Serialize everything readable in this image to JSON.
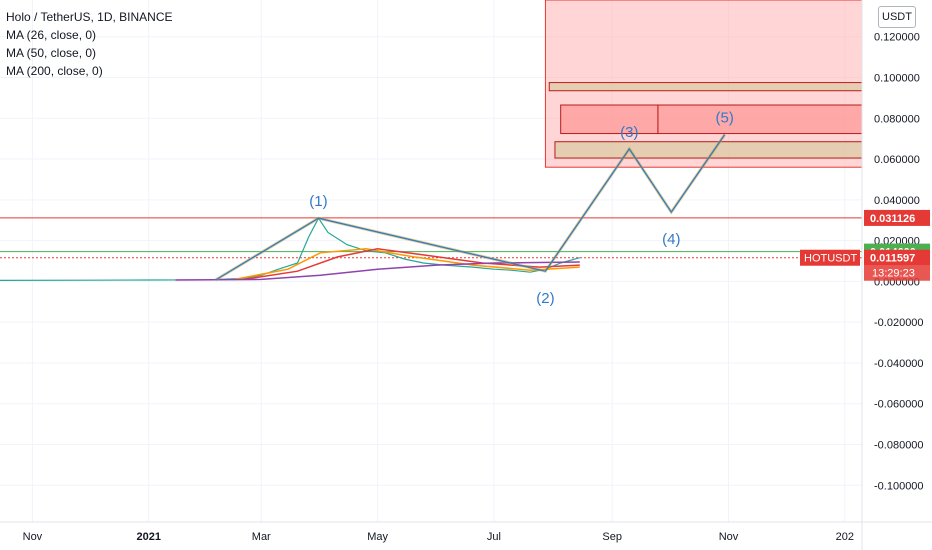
{
  "legend": {
    "symbol": "Holo / TetherUS, 1D, BINANCE",
    "ma1": "MA (26, close, 0)",
    "ma2": "MA (50, close, 0)",
    "ma3": "MA (200, close, 0)"
  },
  "currency_button": "USDT",
  "colors": {
    "wave": "#3179c9",
    "resistance": "#e53935",
    "support": "#4caf50",
    "ma26": "#ff9800",
    "ma50": "#e53935",
    "ma200": "#8e44ad",
    "last_price": "#e53935",
    "target_zone": "#ffb3b3",
    "olive_box": "#d4c89a"
  },
  "chart_data": {
    "type": "line",
    "title": "Holo / TetherUS, 1D, BINANCE",
    "y_tick_labels": [
      "0.120000",
      "0.100000",
      "0.080000",
      "0.060000",
      "0.040000",
      "0.020000",
      "0.000000",
      "-0.020000",
      "-0.040000",
      "-0.060000",
      "-0.080000",
      "-0.100000"
    ],
    "y_ticks": [
      0.12,
      0.1,
      0.08,
      0.06,
      0.04,
      0.02,
      0.0,
      -0.02,
      -0.04,
      -0.06,
      -0.08,
      -0.1
    ],
    "ylim": [
      -0.118,
      0.138
    ],
    "x_tick_labels": [
      "Nov",
      "2021",
      "Mar",
      "May",
      "Jul",
      "Sep",
      "Nov",
      "202"
    ],
    "x_ticks": [
      "2020-11-01",
      "2021-01-01",
      "2021-03-01",
      "2021-05-01",
      "2021-07-01",
      "2021-09-01",
      "2021-11-01",
      "2022-01-01"
    ],
    "xlim": [
      "2020-10-15",
      "2022-01-10"
    ],
    "grid": true,
    "price_line": [
      [
        "2020-10-15",
        0.0005
      ],
      [
        "2020-12-01",
        0.0006
      ],
      [
        "2021-01-01",
        0.0007
      ],
      [
        "2021-02-01",
        0.0008
      ],
      [
        "2021-02-20",
        0.0015
      ],
      [
        "2021-03-01",
        0.003
      ],
      [
        "2021-03-10",
        0.006
      ],
      [
        "2021-03-20",
        0.009
      ],
      [
        "2021-03-26",
        0.022
      ],
      [
        "2021-03-31",
        0.031
      ],
      [
        "2021-04-05",
        0.024
      ],
      [
        "2021-04-15",
        0.018
      ],
      [
        "2021-04-25",
        0.015
      ],
      [
        "2021-05-05",
        0.014
      ],
      [
        "2021-05-15",
        0.011
      ],
      [
        "2021-05-25",
        0.009
      ],
      [
        "2021-06-05",
        0.008
      ],
      [
        "2021-06-20",
        0.007
      ],
      [
        "2021-07-01",
        0.006
      ],
      [
        "2021-07-10",
        0.0055
      ],
      [
        "2021-07-20",
        0.0045
      ],
      [
        "2021-07-28",
        0.006
      ],
      [
        "2021-08-05",
        0.009
      ],
      [
        "2021-08-15",
        0.011597
      ]
    ],
    "series": [
      {
        "name": "MA (26, close, 0)",
        "x": [
          "2021-02-15",
          "2021-03-15",
          "2021-04-01",
          "2021-04-25",
          "2021-05-20",
          "2021-06-20",
          "2021-07-20",
          "2021-08-15"
        ],
        "values": [
          0.001,
          0.006,
          0.014,
          0.016,
          0.012,
          0.008,
          0.0055,
          0.007
        ]
      },
      {
        "name": "MA (50, close, 0)",
        "x": [
          "2021-02-20",
          "2021-03-20",
          "2021-04-10",
          "2021-05-01",
          "2021-05-25",
          "2021-06-25",
          "2021-07-25",
          "2021-08-15"
        ],
        "values": [
          0.001,
          0.005,
          0.012,
          0.016,
          0.013,
          0.009,
          0.007,
          0.008
        ]
      },
      {
        "name": "MA (200, close, 0)",
        "x": [
          "2021-01-15",
          "2021-03-01",
          "2021-04-01",
          "2021-05-01",
          "2021-06-01",
          "2021-07-01",
          "2021-08-15"
        ],
        "values": [
          0.0007,
          0.001,
          0.003,
          0.006,
          0.008,
          0.009,
          0.0095
        ]
      }
    ],
    "horizontal_lines": [
      {
        "value": 0.031126,
        "label": "0.031126",
        "color": "#e53935"
      },
      {
        "value": 0.0146,
        "label": "0.014600",
        "color": "#4caf50"
      }
    ],
    "last_price": {
      "symbol": "HOTUSDT",
      "value": 0.011597,
      "label": "0.011597",
      "countdown": "13:29:23"
    },
    "wave_pattern": {
      "points": [
        {
          "label": "",
          "x": "2021-02-05",
          "y": 0.0007
        },
        {
          "label": "(1)",
          "x": "2021-03-31",
          "y": 0.031
        },
        {
          "label": "(2)",
          "x": "2021-07-28",
          "y": 0.005
        },
        {
          "label": "(3)",
          "x": "2021-09-10",
          "y": 0.065
        },
        {
          "label": "(4)",
          "x": "2021-10-02",
          "y": 0.034
        },
        {
          "label": "(5)",
          "x": "2021-10-30",
          "y": 0.072
        }
      ]
    },
    "target_zone": {
      "x_start": "2021-07-28",
      "x_end": "2022-01-10",
      "y_low": 0.056,
      "y_high": 0.138
    },
    "zone_boxes": [
      {
        "x_start": "2021-07-30",
        "x_end": "2022-01-10",
        "y_low": 0.0935,
        "y_high": 0.0975
      },
      {
        "x_start": "2021-08-05",
        "x_end": "2021-09-25",
        "y_low": 0.0725,
        "y_high": 0.0865
      },
      {
        "x_start": "2021-09-25",
        "x_end": "2022-01-10",
        "y_low": 0.0725,
        "y_high": 0.0865
      },
      {
        "x_start": "2021-08-02",
        "x_end": "2022-01-10",
        "y_low": 0.0605,
        "y_high": 0.0685
      }
    ]
  }
}
